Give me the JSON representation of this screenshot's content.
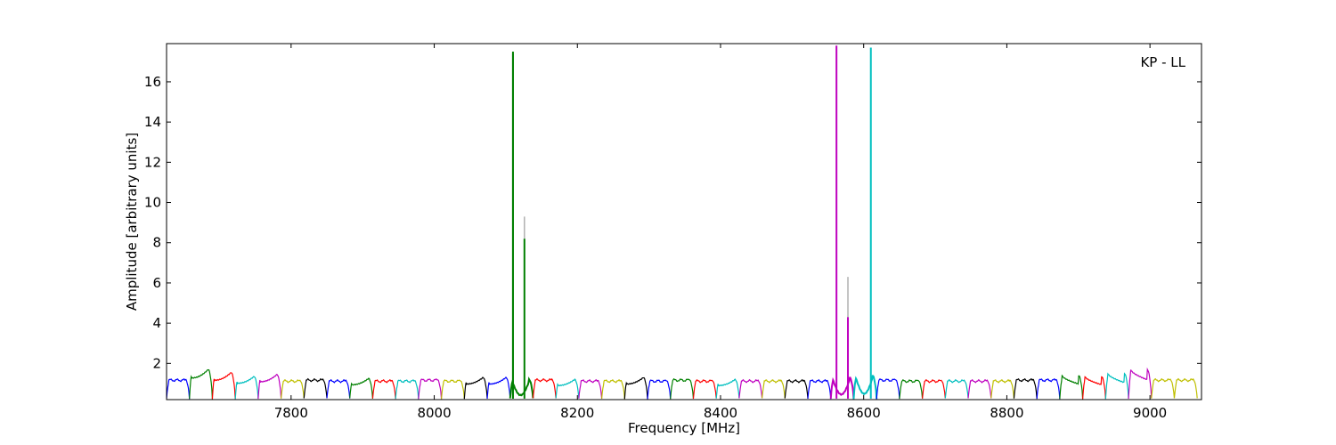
{
  "chart_data": {
    "type": "line",
    "title": "",
    "xlabel": "Frequency [MHz]",
    "ylabel": "Amplitude [arbitrary units]",
    "annotation": "KP - LL",
    "xlim": [
      7626,
      9072
    ],
    "ylim": [
      0.2,
      17.9
    ],
    "xticks": [
      7800,
      8000,
      8200,
      8400,
      8600,
      8800,
      9000
    ],
    "yticks": [
      2,
      4,
      6,
      8,
      10,
      12,
      14,
      16
    ],
    "grid": false,
    "legend": "none",
    "channel_width_mhz": 32,
    "channel_start_mhz": 7626,
    "channel_count": 45,
    "channel_profile": {
      "baseline": 0.25,
      "flat_level": 1.15,
      "edge_peak": 1.5
    },
    "color_cycle": [
      "#0000ff",
      "#008000",
      "#ff0000",
      "#00bfbf",
      "#bf00bf",
      "#bfbf00",
      "#000000"
    ],
    "channels": [
      {
        "color": "#0000ff",
        "level": 1.2,
        "shape": "flat"
      },
      {
        "color": "#008000",
        "level": 1.7,
        "shape": "rising"
      },
      {
        "color": "#ff0000",
        "level": 1.55,
        "shape": "rising"
      },
      {
        "color": "#00bfbf",
        "level": 1.35,
        "shape": "rising"
      },
      {
        "color": "#bf00bf",
        "level": 1.45,
        "shape": "rising"
      },
      {
        "color": "#bfbf00",
        "level": 1.15,
        "shape": "flat"
      },
      {
        "color": "#000000",
        "level": 1.2,
        "shape": "flat"
      },
      {
        "color": "#0000ff",
        "level": 1.15,
        "shape": "flat"
      },
      {
        "color": "#008000",
        "level": 1.25,
        "shape": "rising"
      },
      {
        "color": "#ff0000",
        "level": 1.15,
        "shape": "flat"
      },
      {
        "color": "#00bfbf",
        "level": 1.15,
        "shape": "flat"
      },
      {
        "color": "#bf00bf",
        "level": 1.2,
        "shape": "flat"
      },
      {
        "color": "#bfbf00",
        "level": 1.15,
        "shape": "flat"
      },
      {
        "color": "#000000",
        "level": 1.3,
        "shape": "rising"
      },
      {
        "color": "#0000ff",
        "level": 1.3,
        "shape": "rising"
      },
      {
        "color": "#008000",
        "level": 1.2,
        "shape": "dip"
      },
      {
        "color": "#ff0000",
        "level": 1.2,
        "shape": "flat"
      },
      {
        "color": "#00bfbf",
        "level": 1.2,
        "shape": "rising"
      },
      {
        "color": "#bf00bf",
        "level": 1.15,
        "shape": "flat"
      },
      {
        "color": "#bfbf00",
        "level": 1.15,
        "shape": "flat"
      },
      {
        "color": "#000000",
        "level": 1.3,
        "shape": "rising"
      },
      {
        "color": "#0000ff",
        "level": 1.15,
        "shape": "flat"
      },
      {
        "color": "#008000",
        "level": 1.2,
        "shape": "flat"
      },
      {
        "color": "#ff0000",
        "level": 1.15,
        "shape": "flat"
      },
      {
        "color": "#00bfbf",
        "level": 1.2,
        "shape": "rising"
      },
      {
        "color": "#bf00bf",
        "level": 1.15,
        "shape": "flat"
      },
      {
        "color": "#bfbf00",
        "level": 1.15,
        "shape": "flat"
      },
      {
        "color": "#000000",
        "level": 1.15,
        "shape": "flat"
      },
      {
        "color": "#0000ff",
        "level": 1.15,
        "shape": "flat"
      },
      {
        "color": "#bf00bf",
        "level": 1.3,
        "shape": "dip"
      },
      {
        "color": "#00bfbf",
        "level": 1.4,
        "shape": "dip"
      },
      {
        "color": "#0000ff",
        "level": 1.2,
        "shape": "flat"
      },
      {
        "color": "#008000",
        "level": 1.15,
        "shape": "flat"
      },
      {
        "color": "#ff0000",
        "level": 1.15,
        "shape": "flat"
      },
      {
        "color": "#00bfbf",
        "level": 1.15,
        "shape": "flat"
      },
      {
        "color": "#bf00bf",
        "level": 1.15,
        "shape": "flat"
      },
      {
        "color": "#bfbf00",
        "level": 1.15,
        "shape": "flat"
      },
      {
        "color": "#000000",
        "level": 1.2,
        "shape": "flat"
      },
      {
        "color": "#0000ff",
        "level": 1.2,
        "shape": "flat"
      },
      {
        "color": "#008000",
        "level": 1.4,
        "shape": "falling"
      },
      {
        "color": "#ff0000",
        "level": 1.35,
        "shape": "falling"
      },
      {
        "color": "#00bfbf",
        "level": 1.5,
        "shape": "falling"
      },
      {
        "color": "#bf00bf",
        "level": 1.7,
        "shape": "falling"
      },
      {
        "color": "#bfbf00",
        "level": 1.2,
        "shape": "flat"
      },
      {
        "color": "#bfbf00",
        "level": 1.2,
        "shape": "flat"
      }
    ],
    "spikes": [
      {
        "x": 8110,
        "y": 17.5,
        "color": "#008000"
      },
      {
        "x": 8110,
        "y": 17.4,
        "color": "#008000"
      },
      {
        "x": 8126,
        "y": 9.3,
        "color": "#b0b0b0"
      },
      {
        "x": 8126,
        "y": 8.2,
        "color": "#008000"
      },
      {
        "x": 8562,
        "y": 17.8,
        "color": "#bf00bf"
      },
      {
        "x": 8578,
        "y": 6.3,
        "color": "#b0b0b0"
      },
      {
        "x": 8578,
        "y": 4.3,
        "color": "#bf00bf"
      },
      {
        "x": 8610,
        "y": 17.7,
        "color": "#00bfbf"
      }
    ]
  }
}
